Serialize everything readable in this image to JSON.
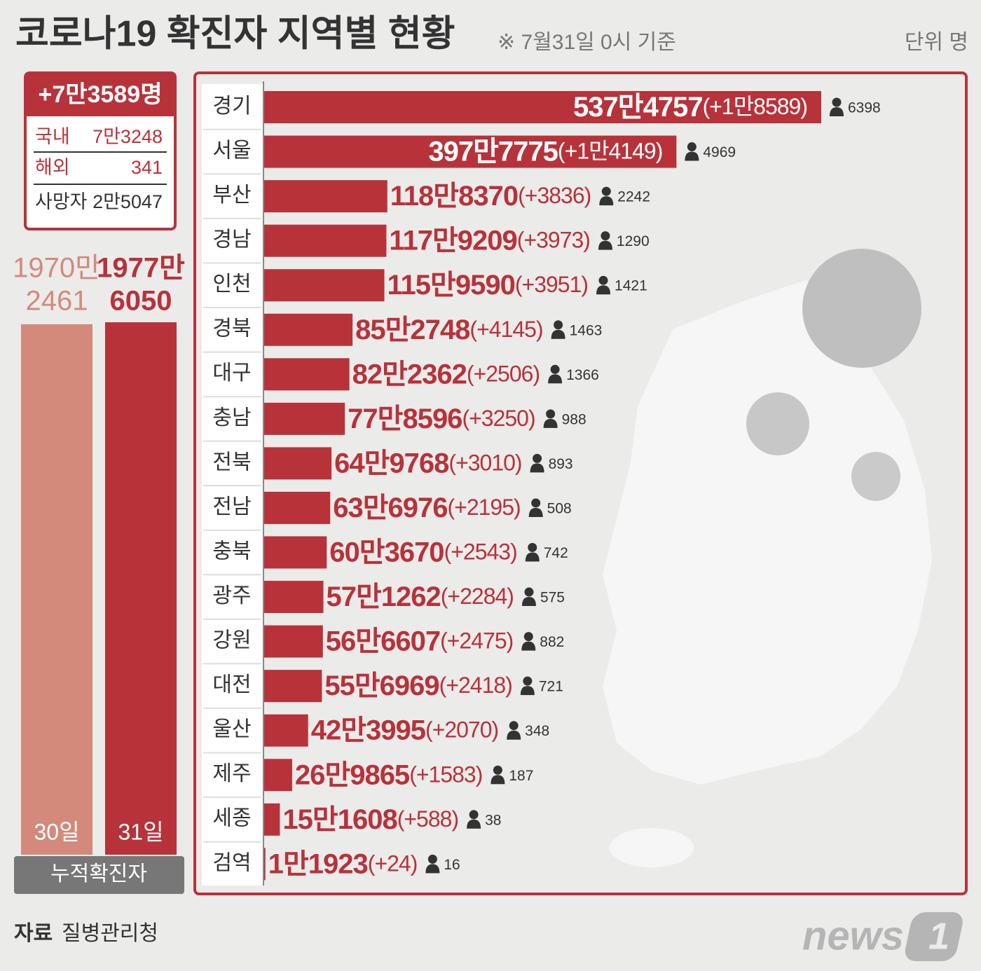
{
  "header": {
    "title": "코로나19 확진자 지역별 현황",
    "note": "※ 7월31일 0시 기준",
    "unit": "단위 명"
  },
  "summary": {
    "total": "+7만3589명",
    "rows": [
      {
        "label": "국내",
        "value": "7만3248"
      },
      {
        "label": "해외",
        "value": "341"
      },
      {
        "label": "사망자",
        "value": "2만5047"
      }
    ]
  },
  "source": {
    "label": "자료",
    "value": "질병관리청"
  },
  "logo": [
    "news",
    "1"
  ],
  "chart_data": [
    {
      "type": "bar",
      "categories": [
        "30일",
        "31일"
      ],
      "values": [
        19702461,
        19776050
      ],
      "value_labels": [
        [
          "1970만",
          "2461"
        ],
        [
          "1977만",
          "6050"
        ]
      ],
      "colors": [
        "#d38a7b",
        "#b8323a"
      ],
      "xlabel": "누적확진자"
    },
    {
      "type": "hbar",
      "color": "#b8323a",
      "categories": [
        "경기",
        "서울",
        "부산",
        "경남",
        "인천",
        "경북",
        "대구",
        "충남",
        "전북",
        "전남",
        "충북",
        "광주",
        "강원",
        "대전",
        "울산",
        "제주",
        "세종",
        "검역"
      ],
      "values": [
        5374757,
        3977775,
        1188370,
        1179209,
        1159590,
        852748,
        822362,
        778596,
        649768,
        636976,
        603670,
        571262,
        566607,
        556969,
        423995,
        269865,
        151608,
        11923
      ],
      "value_labels": [
        "537만4757",
        "397만7775",
        "118만8370",
        "117만9209",
        "115만9590",
        "85만2748",
        "82만2362",
        "77만8596",
        "64만9768",
        "63만6976",
        "60만3670",
        "57만1262",
        "56만6607",
        "55만6969",
        "42만3995",
        "26만9865",
        "15만1608",
        "1만1923"
      ],
      "increase": [
        "(+1만8589)",
        "(+1만4149)",
        "(+3836)",
        "(+3973)",
        "(+3951)",
        "(+4145)",
        "(+2506)",
        "(+3250)",
        "(+3010)",
        "(+2195)",
        "(+2543)",
        "(+2284)",
        "(+2475)",
        "(+2418)",
        "(+2070)",
        "(+1583)",
        "(+588)",
        "(+24)"
      ],
      "deaths": [
        6398,
        4969,
        2242,
        1290,
        1421,
        1463,
        1366,
        988,
        893,
        508,
        742,
        575,
        882,
        721,
        348,
        187,
        38,
        16
      ]
    }
  ]
}
